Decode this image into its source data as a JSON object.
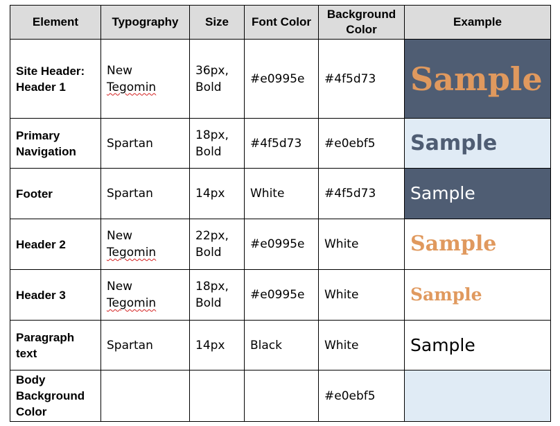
{
  "table": {
    "headers": {
      "element": "Element",
      "typography": "Typography",
      "size": "Size",
      "font_color": "Font Color",
      "background_color": "Background Color",
      "example": "Example"
    },
    "rows": [
      {
        "element": "Site Header: Header 1",
        "typography_line1": "New",
        "typography_line2": "Tegomin",
        "size_line1": "36px,",
        "size_line2": "Bold",
        "font_color": "#e0995e",
        "background_color": "#4f5d73",
        "example": "Sample",
        "example_fg": "#e0995e",
        "example_bg": "#4f5d73"
      },
      {
        "element": "Primary Navigation",
        "typography": "Spartan",
        "size_line1": "18px,",
        "size_line2": "Bold",
        "font_color": "#4f5d73",
        "background_color": "#e0ebf5",
        "example": "Sample",
        "example_fg": "#4f5d73",
        "example_bg": "#e0ebf5"
      },
      {
        "element": "Footer",
        "typography": "Spartan",
        "size": "14px",
        "font_color": "White",
        "background_color": "#4f5d73",
        "example": "Sample",
        "example_fg": "#ffffff",
        "example_bg": "#4f5d73"
      },
      {
        "element": "Header 2",
        "typography_line1": "New",
        "typography_line2": "Tegomin",
        "size_line1": "22px,",
        "size_line2": "Bold",
        "font_color": "#e0995e",
        "background_color": "White",
        "example": "Sample",
        "example_fg": "#e0995e",
        "example_bg": "#ffffff"
      },
      {
        "element": "Header 3",
        "typography_line1": "New",
        "typography_line2": "Tegomin",
        "size_line1": "18px,",
        "size_line2": "Bold",
        "font_color": "#e0995e",
        "background_color": "White",
        "example": "Sample",
        "example_fg": "#e0995e",
        "example_bg": "#ffffff"
      },
      {
        "element": "Paragraph text",
        "typography": "Spartan",
        "size": "14px",
        "font_color": "Black",
        "background_color": "White",
        "example": "Sample",
        "example_fg": "#000000",
        "example_bg": "#ffffff"
      },
      {
        "element": "Body Background Color",
        "typography": "",
        "size": "",
        "font_color": "",
        "background_color": "#e0ebf5",
        "example": "",
        "example_bg": "#e0ebf5"
      }
    ]
  },
  "colors": {
    "header_row_bg": "#dcdcdc",
    "border": "#000000",
    "spellcheck_underline": "#d42020"
  }
}
